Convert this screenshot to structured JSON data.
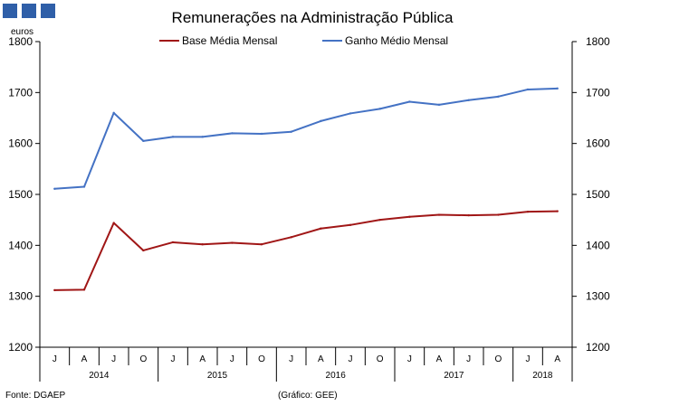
{
  "page": {
    "source": "Fonte: DGAEP",
    "credit": "(Gráfico: GEE)"
  },
  "colors": {
    "logo": "#2f5fa8",
    "base_line": "#a01616",
    "ganho_line": "#4472c4",
    "axis": "#000000"
  },
  "chart_data": {
    "type": "line",
    "title": "Remunerações na Administração Pública",
    "ylabel": "euros",
    "ylim": [
      1200,
      1800
    ],
    "yticks": [
      1200,
      1300,
      1400,
      1500,
      1600,
      1700,
      1800
    ],
    "yticks_right": [
      1200,
      1300,
      1400,
      1500,
      1600,
      1700,
      1800
    ],
    "categories": [
      "J",
      "A",
      "J",
      "O",
      "J",
      "A",
      "J",
      "O",
      "J",
      "A",
      "J",
      "O",
      "J",
      "A",
      "J",
      "O",
      "J",
      "A"
    ],
    "years": [
      {
        "label": "2014",
        "start": 0,
        "end": 3
      },
      {
        "label": "2015",
        "start": 4,
        "end": 7
      },
      {
        "label": "2016",
        "start": 8,
        "end": 11
      },
      {
        "label": "2017",
        "start": 12,
        "end": 15
      },
      {
        "label": "2018",
        "start": 16,
        "end": 17
      }
    ],
    "series": [
      {
        "name": "Base Média Mensal",
        "color": "#a01616",
        "values": [
          1312,
          1313,
          1444,
          1390,
          1406,
          1402,
          1405,
          1402,
          1416,
          1433,
          1440,
          1450,
          1456,
          1460,
          1459,
          1460,
          1466,
          1467
        ]
      },
      {
        "name": "Ganho Médio Mensal",
        "color": "#4472c4",
        "values": [
          1511,
          1515,
          1660,
          1605,
          1613,
          1613,
          1620,
          1619,
          1623,
          1644,
          1659,
          1668,
          1682,
          1676,
          1685,
          1692,
          1706,
          1708
        ]
      }
    ],
    "legend_position": "top-center",
    "grid": false
  }
}
